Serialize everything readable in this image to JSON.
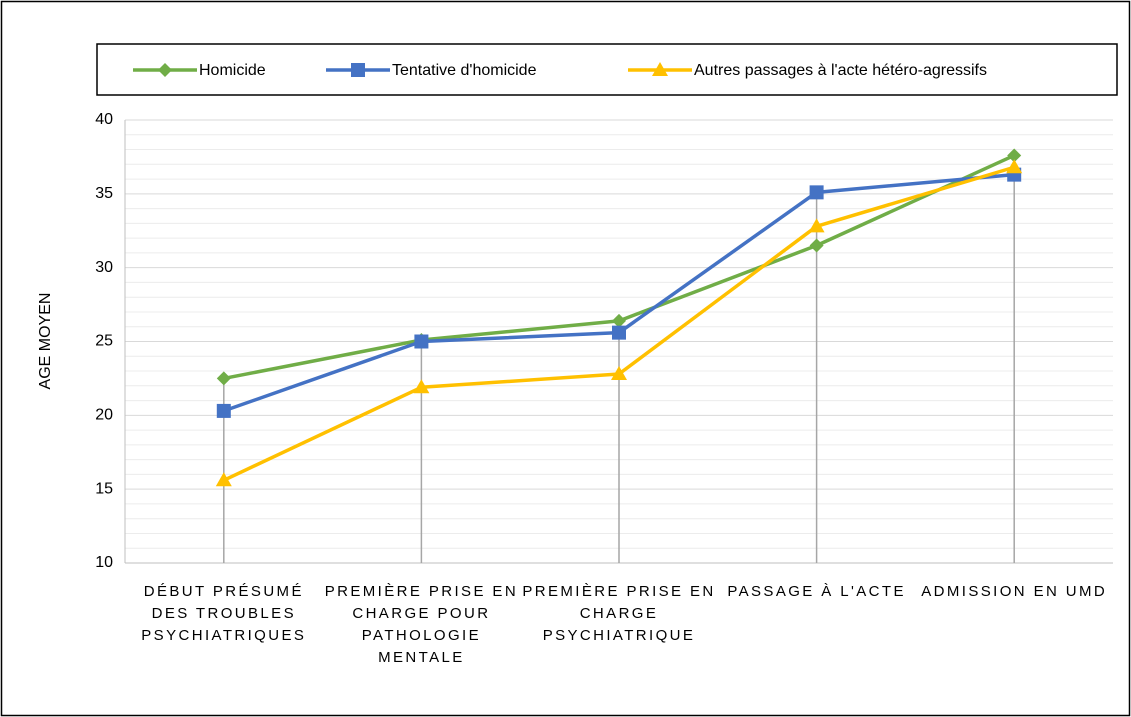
{
  "chart_data": {
    "type": "line",
    "y_label": "AGE MOYEN",
    "categories": [
      "DÉBUT PRÉSUMÉ DES TROUBLES PSYCHIATRIQUES",
      "PREMIÈRE PRISE EN CHARGE POUR PATHOLOGIE MENTALE",
      "PREMIÈRE PRISE EN CHARGE PSYCHIATRIQUE",
      "PASSAGE À L'ACTE",
      "ADMISSION EN UMD"
    ],
    "series": [
      {
        "name": "Homicide",
        "color": "#70ad47",
        "marker": "diamond",
        "values": [
          22.5,
          25.1,
          26.4,
          31.5,
          37.6
        ]
      },
      {
        "name": "Tentative d'homicide",
        "color": "#4472c4",
        "marker": "square",
        "values": [
          20.3,
          25.0,
          25.6,
          35.1,
          36.3
        ]
      },
      {
        "name": "Autres passages à l'acte hétéro-agressifs",
        "color": "#ffc000",
        "marker": "triangle",
        "values": [
          15.6,
          21.9,
          22.8,
          32.8,
          36.8
        ]
      }
    ],
    "ylim": [
      10,
      40
    ],
    "yticks": [
      10,
      15,
      20,
      25,
      30,
      35,
      40
    ],
    "grid": true,
    "minor_grid": true,
    "drop_lines": true,
    "legend": "top"
  }
}
